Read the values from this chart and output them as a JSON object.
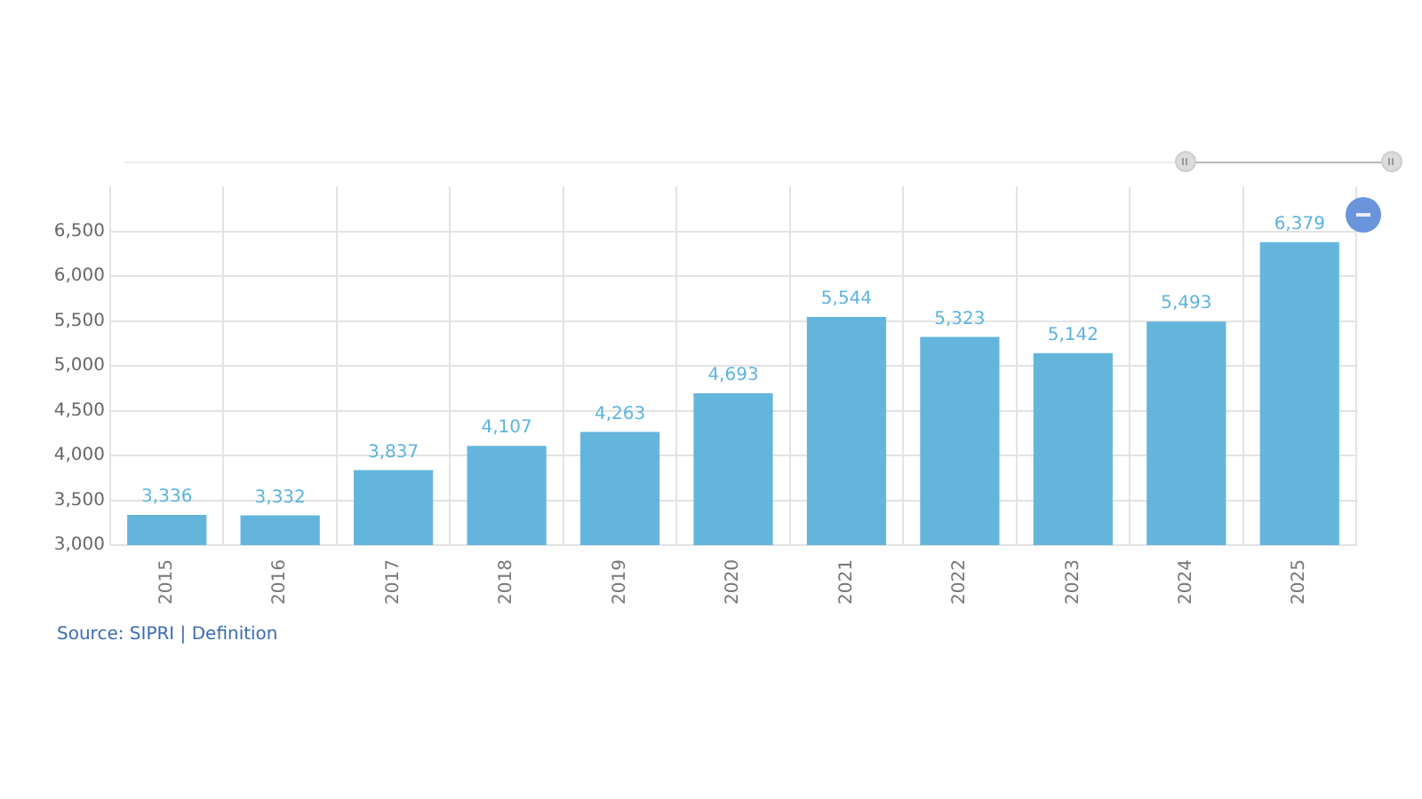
{
  "chart_data": {
    "type": "bar",
    "categories": [
      "2015",
      "2016",
      "2017",
      "2018",
      "2019",
      "2020",
      "2021",
      "2022",
      "2023",
      "2024",
      "2025"
    ],
    "values": [
      3336,
      3332,
      3837,
      4107,
      4263,
      4693,
      5544,
      5323,
      5142,
      5493,
      6379
    ],
    "color": "#64b5dc",
    "value_labels": [
      "3,336",
      "3,332",
      "3,837",
      "4,107",
      "4,263",
      "4,693",
      "5,544",
      "5,323",
      "5,142",
      "5,493",
      "6,379"
    ],
    "ylim": [
      3000,
      7000
    ],
    "yticks": [
      {
        "value": 3000,
        "label": "3,000"
      },
      {
        "value": 3500,
        "label": "3,500"
      },
      {
        "value": 4000,
        "label": "4,000"
      },
      {
        "value": 4500,
        "label": "4,500"
      },
      {
        "value": 5000,
        "label": "5,000"
      },
      {
        "value": 5500,
        "label": "5,500"
      },
      {
        "value": 6000,
        "label": "6,000"
      },
      {
        "value": 6500,
        "label": "6,500"
      }
    ],
    "grid": true,
    "annotations": [
      "Source: SIPRI | Definition"
    ]
  }
}
